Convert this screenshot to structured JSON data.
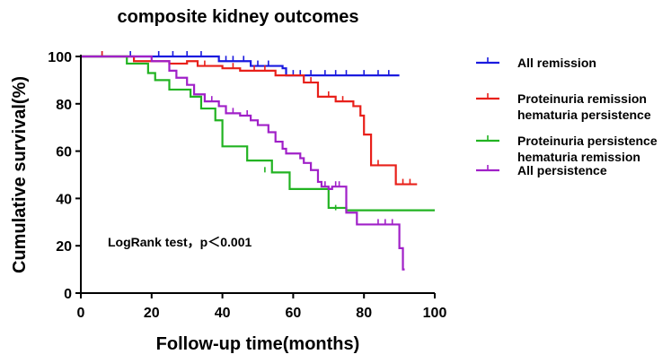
{
  "chart_data": {
    "type": "line",
    "step": true,
    "title": "composite kidney outcomes",
    "xlabel": "Follow-up time(months)",
    "ylabel": "Cumulative survival(%)",
    "xlim": [
      0,
      100
    ],
    "ylim": [
      0,
      100
    ],
    "xticks": [
      0,
      20,
      40,
      60,
      80,
      100
    ],
    "yticks": [
      0,
      20,
      40,
      60,
      80,
      100
    ],
    "legend_position": "right",
    "annotation": "LogRank test，p＜0.001",
    "series": [
      {
        "name": "All remission",
        "color": "#1a1adf",
        "x": [
          0,
          10,
          20,
          30,
          39,
          48,
          57,
          58,
          90
        ],
        "y": [
          100,
          100,
          100,
          100,
          98,
          96,
          95,
          92,
          92
        ],
        "censored": [
          [
            6,
            100
          ],
          [
            14,
            100
          ],
          [
            22,
            100
          ],
          [
            26,
            100
          ],
          [
            30,
            100
          ],
          [
            34,
            100
          ],
          [
            41,
            98
          ],
          [
            43,
            98
          ],
          [
            46,
            98
          ],
          [
            50,
            96
          ],
          [
            53,
            96
          ],
          [
            60,
            92
          ],
          [
            62,
            92
          ],
          [
            65,
            92
          ],
          [
            69,
            92
          ],
          [
            72,
            92
          ],
          [
            75,
            92
          ],
          [
            80,
            92
          ],
          [
            84,
            92
          ],
          [
            87,
            92
          ]
        ]
      },
      {
        "name": "Proteinuria remission\nhematuria persistence",
        "color": "#e8201a",
        "x": [
          0,
          15,
          25,
          30,
          33,
          40,
          45,
          55,
          63,
          67,
          72,
          77,
          79,
          80,
          82,
          89,
          95
        ],
        "y": [
          100,
          98,
          97,
          98,
          96,
          95,
          94,
          92,
          89,
          83,
          81,
          79,
          75,
          67,
          54,
          46,
          46
        ],
        "censored": [
          [
            6,
            100
          ],
          [
            35,
            96
          ],
          [
            43,
            95
          ],
          [
            49,
            94
          ],
          [
            52,
            94
          ],
          [
            65,
            89
          ],
          [
            70,
            83
          ],
          [
            74,
            81
          ],
          [
            84,
            54
          ],
          [
            91,
            46
          ],
          [
            93,
            46
          ]
        ]
      },
      {
        "name": "Proteinuria persistence\nhematuria remission",
        "color": "#22b322",
        "x": [
          0,
          13,
          19,
          21,
          25,
          31,
          34,
          38,
          40,
          47,
          54,
          59,
          70,
          75,
          100
        ],
        "y": [
          100,
          97,
          93,
          90,
          86,
          83,
          78,
          73,
          62,
          56,
          51,
          44,
          36,
          35,
          35
        ],
        "censored": [
          [
            52,
            51
          ],
          [
            72,
            35
          ]
        ]
      },
      {
        "name": "All persistence",
        "color": "#a020c8",
        "x": [
          0,
          20,
          25,
          27,
          30,
          32,
          35,
          39,
          41,
          45,
          48,
          50,
          53,
          55,
          57,
          58,
          62,
          63,
          65,
          67,
          68,
          70,
          71,
          75,
          78,
          90,
          91,
          91.5
        ],
        "y": [
          100,
          98,
          94,
          91,
          88,
          84,
          81,
          79,
          76,
          75,
          73,
          71,
          68,
          64,
          61,
          59,
          57,
          55,
          52,
          47,
          45,
          44,
          45,
          34,
          29,
          19,
          10,
          10
        ],
        "censored": [
          [
            37,
            81
          ],
          [
            43,
            76
          ],
          [
            47,
            75
          ],
          [
            65,
            52
          ],
          [
            69,
            45
          ],
          [
            72,
            45
          ],
          [
            73,
            45
          ],
          [
            84,
            29
          ],
          [
            86,
            29
          ],
          [
            88,
            29
          ]
        ]
      }
    ]
  }
}
